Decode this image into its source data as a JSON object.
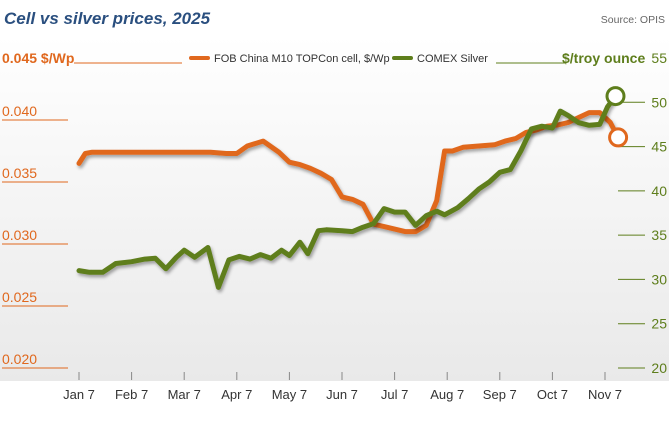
{
  "chart_data": {
    "type": "line",
    "title": "Cell vs silver prices, 2025",
    "source": "Source: OPIS",
    "xlabel": "",
    "ylabel_left": "$/Wp",
    "ylabel_right": "$/troy ounce",
    "categories": [
      "Jan 7",
      "Feb 7",
      "Mar 7",
      "Apr 7",
      "May 7",
      "Jun 7",
      "Jul 7",
      "Aug 7",
      "Sep 7",
      "Oct 7",
      "Nov 7"
    ],
    "y_left": {
      "min": 0.02,
      "max": 0.045,
      "ticks": [
        "0.020",
        "0.025",
        "0.030",
        "0.035",
        "0.040",
        "0.045"
      ],
      "top_label": "0.045 $/Wp"
    },
    "y_right": {
      "min": 20,
      "max": 55,
      "ticks": [
        "20",
        "25",
        "30",
        "35",
        "40",
        "45",
        "50",
        "55"
      ],
      "top_label": "$/troy ounce"
    },
    "series": [
      {
        "name": "FOB China M10 TOPCon cell, $/Wp",
        "axis": "left",
        "color": "#e0681e",
        "x": [
          0,
          0.12,
          0.25,
          0.5,
          1,
          1.5,
          2,
          2.5,
          2.8,
          3,
          3.2,
          3.5,
          3.8,
          4,
          4.2,
          4.4,
          4.6,
          4.8,
          5,
          5.2,
          5.4,
          5.6,
          5.8,
          6,
          6.2,
          6.4,
          6.6,
          6.8,
          6.95,
          7.1,
          7.3,
          7.6,
          7.9,
          8.1,
          8.3,
          8.5,
          8.7,
          8.9,
          9.1,
          9.3,
          9.5,
          9.7,
          9.9,
          10.1,
          10.25
        ],
        "values": [
          0.0365,
          0.0373,
          0.0374,
          0.0374,
          0.0374,
          0.0374,
          0.0374,
          0.0374,
          0.0373,
          0.0373,
          0.0379,
          0.0383,
          0.0374,
          0.0366,
          0.0364,
          0.0361,
          0.0357,
          0.0352,
          0.0338,
          0.0336,
          0.0332,
          0.0316,
          0.0314,
          0.0312,
          0.031,
          0.031,
          0.0315,
          0.0335,
          0.0375,
          0.0375,
          0.0378,
          0.0379,
          0.038,
          0.0383,
          0.0385,
          0.039,
          0.0392,
          0.0395,
          0.0396,
          0.0398,
          0.0402,
          0.0406,
          0.0406,
          0.0398,
          0.0386
        ]
      },
      {
        "name": "COMEX Silver",
        "axis": "right",
        "color": "#5e7e1c",
        "x": [
          0,
          0.2,
          0.45,
          0.7,
          1,
          1.25,
          1.45,
          1.65,
          1.85,
          2,
          2.2,
          2.45,
          2.65,
          2.85,
          3.05,
          3.25,
          3.45,
          3.65,
          3.85,
          4,
          4.2,
          4.35,
          4.55,
          4.7,
          5,
          5.2,
          5.4,
          5.6,
          5.8,
          6,
          6.2,
          6.4,
          6.6,
          6.8,
          6.95,
          7.2,
          7.4,
          7.6,
          7.8,
          8,
          8.2,
          8.4,
          8.6,
          8.8,
          9.0,
          9.15,
          9.3,
          9.5,
          9.7,
          9.9,
          10.05,
          10.2
        ],
        "values": [
          31.0,
          30.8,
          30.8,
          31.8,
          32.0,
          32.3,
          32.4,
          31.2,
          32.5,
          33.3,
          32.5,
          33.6,
          29.1,
          32.2,
          32.6,
          32.3,
          32.8,
          32.4,
          33.3,
          32.7,
          34.2,
          32.9,
          35.5,
          35.6,
          35.5,
          35.4,
          35.9,
          36.3,
          38.0,
          37.6,
          37.6,
          36.1,
          37.2,
          37.7,
          37.3,
          38.1,
          39.1,
          40.2,
          41.0,
          42.1,
          42.4,
          44.5,
          47.0,
          47.3,
          47.1,
          49.0,
          48.5,
          47.7,
          47.4,
          47.5,
          49.5,
          50.7
        ]
      }
    ],
    "end_markers": {
      "left_value": 0.0386,
      "right_value": 50.7
    },
    "grid": false,
    "legend_position": "top"
  }
}
